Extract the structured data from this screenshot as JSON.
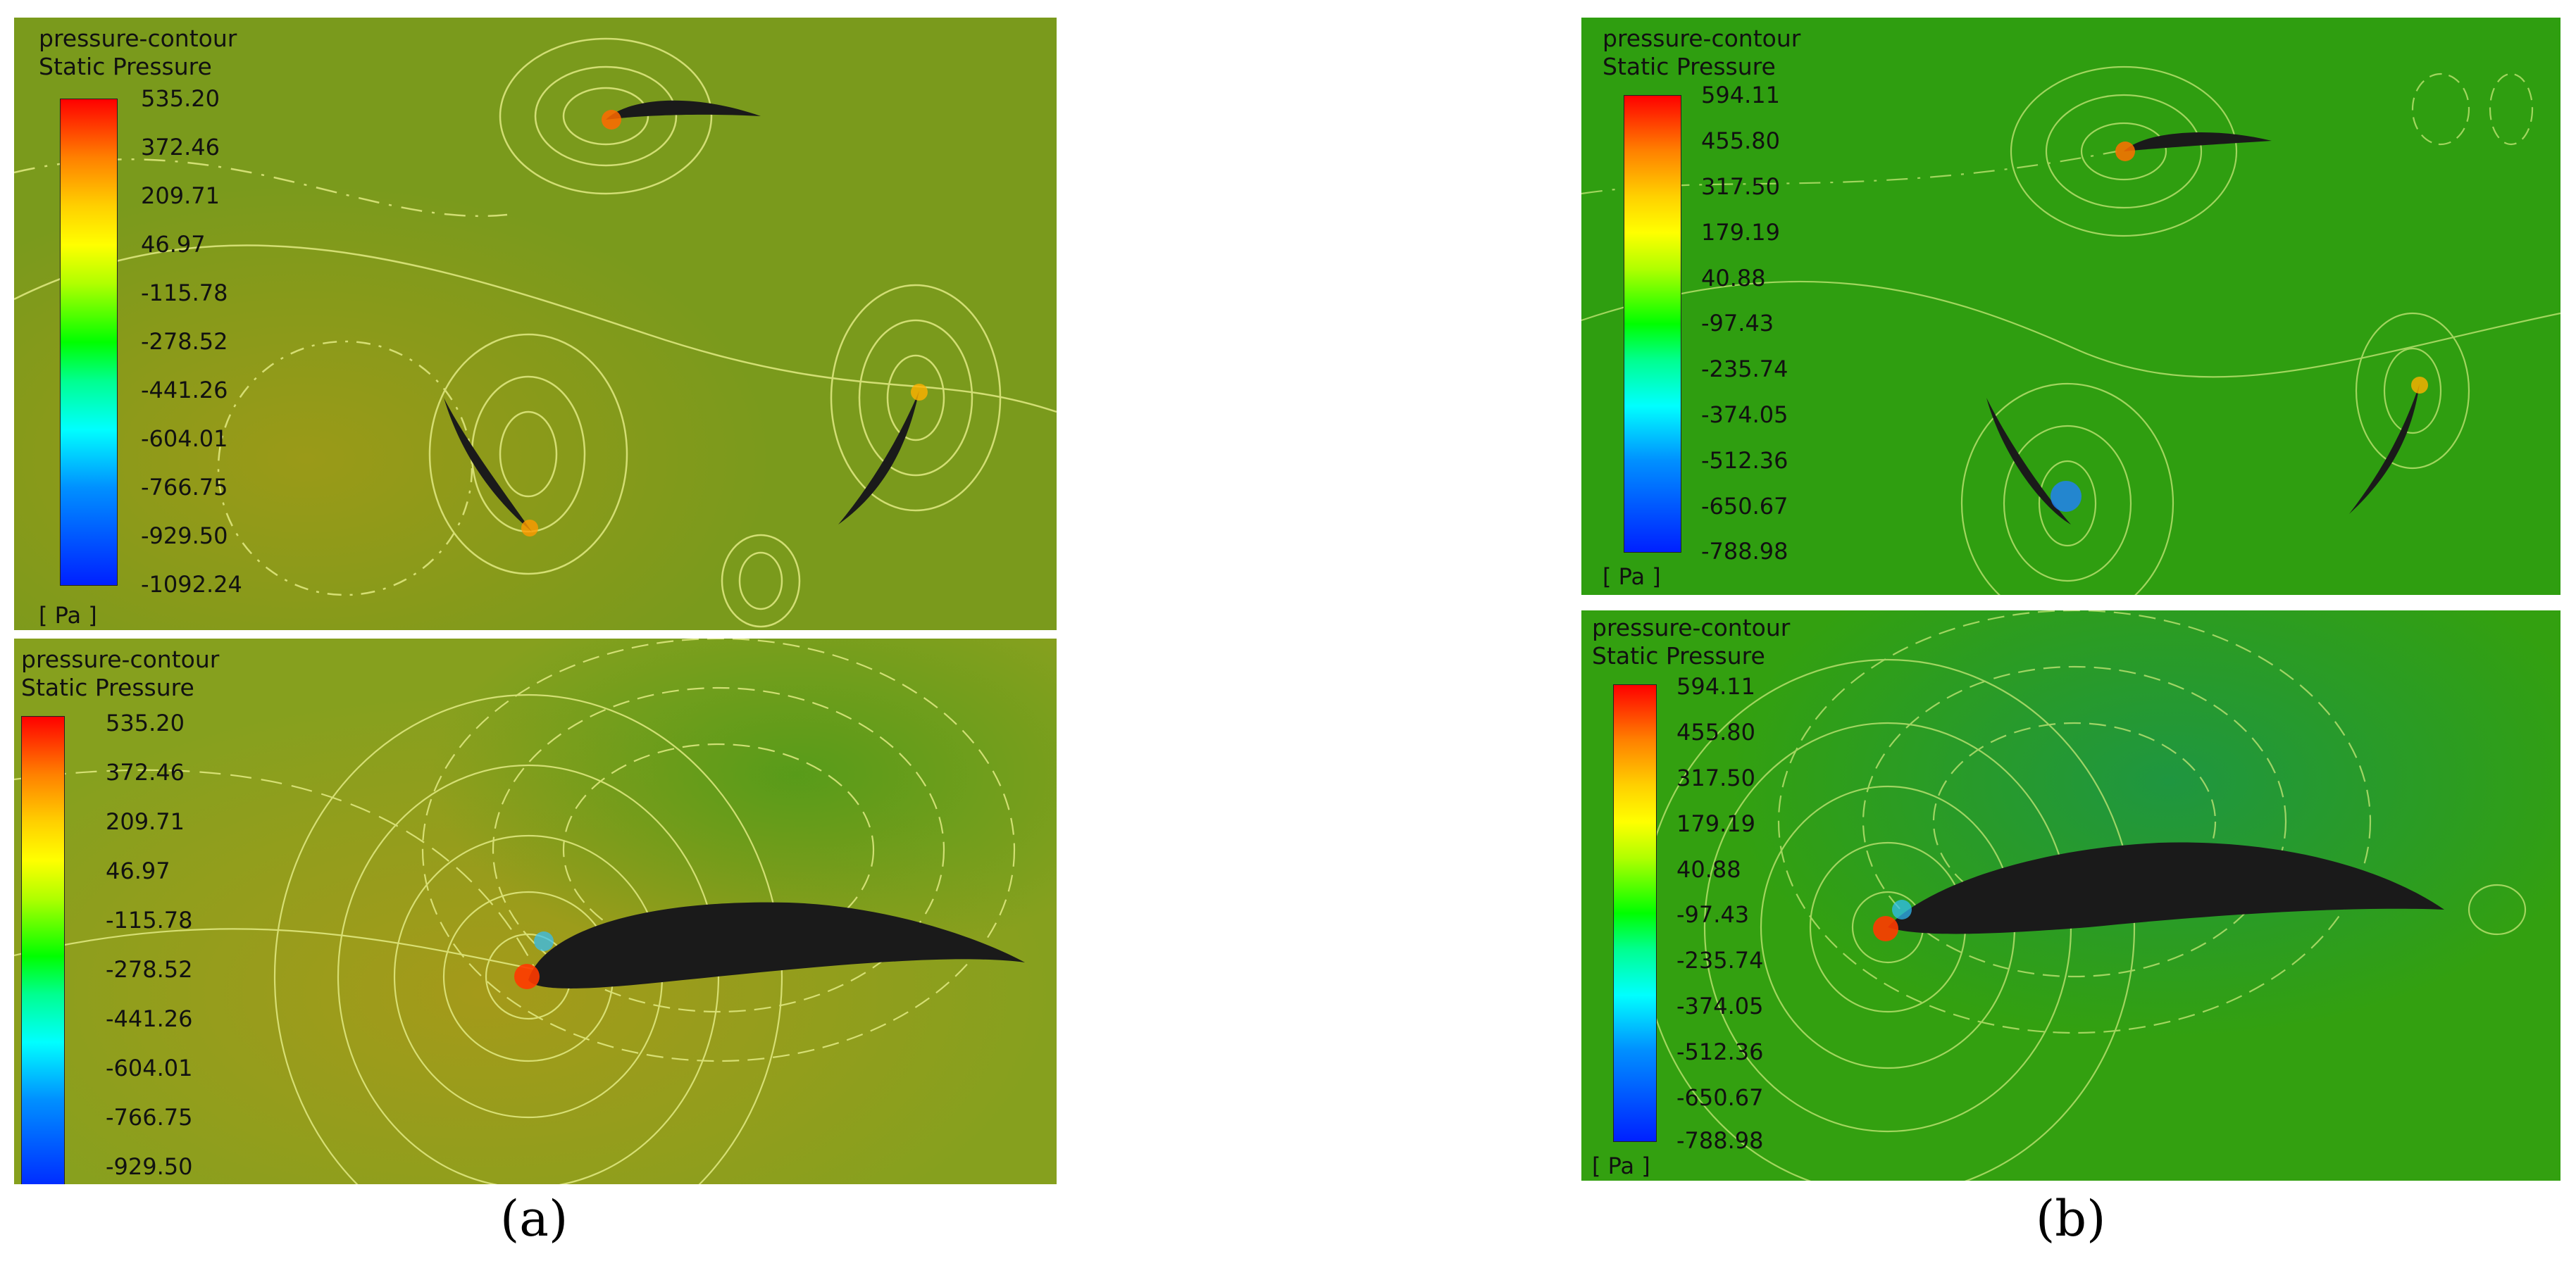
{
  "panels": [
    {
      "id": "a-top",
      "title_line1": "pressure-contour",
      "title_line2": "Static Pressure",
      "ticks": [
        "535.20",
        "372.46",
        "209.71",
        "46.97",
        "-115.78",
        "-278.52",
        "-441.26",
        "-604.01",
        "-766.75",
        "-929.50",
        "-1092.24"
      ],
      "unit": "[ Pa ]",
      "background": "#7d9a1c"
    },
    {
      "id": "a-bottom",
      "title_line1": "pressure-contour",
      "title_line2": "Static Pressure",
      "ticks": [
        "535.20",
        "372.46",
        "209.71",
        "46.97",
        "-115.78",
        "-278.52",
        "-441.26",
        "-604.01",
        "-766.75",
        "-929.50"
      ],
      "unit": "",
      "background": "#86a01e"
    },
    {
      "id": "b-top",
      "title_line1": "pressure-contour",
      "title_line2": "Static Pressure",
      "ticks": [
        "594.11",
        "455.80",
        "317.50",
        "179.19",
        "40.88",
        "-97.43",
        "-235.74",
        "-374.05",
        "-512.36",
        "-650.67",
        "-788.98"
      ],
      "unit": "[ Pa ]",
      "background": "#2f9e10"
    },
    {
      "id": "b-bottom",
      "title_line1": "pressure-contour",
      "title_line2": "Static Pressure",
      "ticks": [
        "594.11",
        "455.80",
        "317.50",
        "179.19",
        "40.88",
        "-97.43",
        "-235.74",
        "-374.05",
        "-512.36",
        "-650.67",
        "-788.98"
      ],
      "unit": "[ Pa ]",
      "background": "#2f9a10"
    }
  ],
  "captions": {
    "a": "(a)",
    "b": "(b)"
  }
}
